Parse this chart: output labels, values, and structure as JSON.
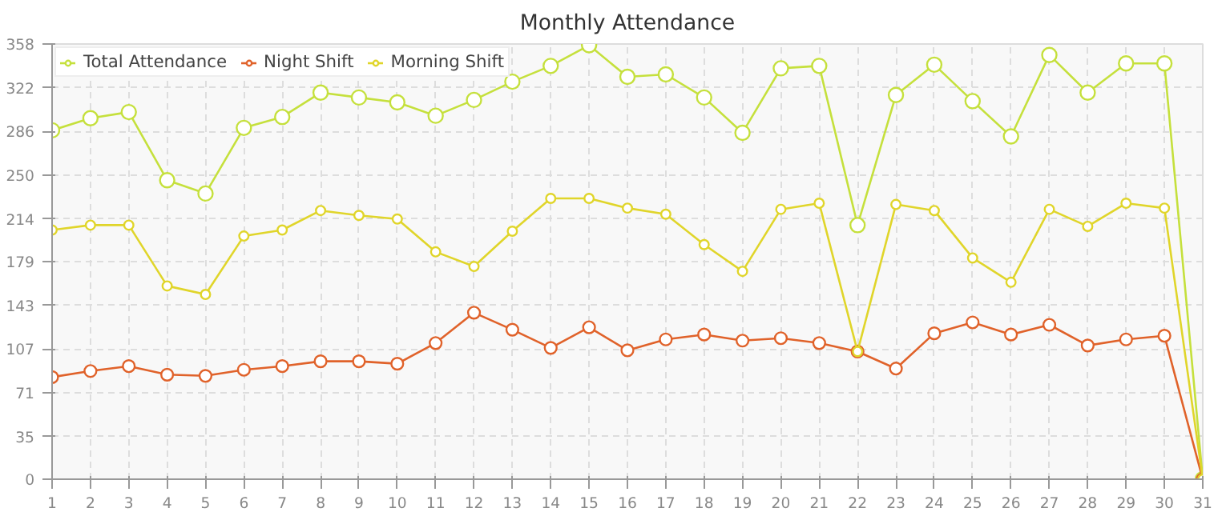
{
  "chart_data": {
    "type": "line",
    "title": "Monthly Attendance",
    "x": [
      1,
      2,
      3,
      4,
      5,
      6,
      7,
      8,
      9,
      10,
      11,
      12,
      13,
      14,
      15,
      16,
      17,
      18,
      19,
      20,
      21,
      22,
      23,
      24,
      25,
      26,
      27,
      28,
      29,
      30,
      31
    ],
    "xlim": [
      1,
      31
    ],
    "xticks": [
      1,
      2,
      3,
      4,
      5,
      6,
      7,
      8,
      9,
      10,
      11,
      12,
      13,
      14,
      15,
      16,
      17,
      18,
      19,
      20,
      21,
      22,
      23,
      24,
      25,
      26,
      27,
      28,
      29,
      30,
      31
    ],
    "ylim": [
      0,
      358
    ],
    "yticks": [
      0,
      35,
      71,
      107,
      143,
      179,
      214,
      250,
      286,
      322,
      358
    ],
    "series": [
      {
        "name": "Total Attendance",
        "color": "#c5e03c",
        "values": [
          287,
          297,
          302,
          246,
          235,
          289,
          298,
          318,
          314,
          310,
          299,
          312,
          327,
          340,
          357,
          331,
          333,
          314,
          285,
          338,
          340,
          209,
          316,
          341,
          311,
          282,
          349,
          318,
          342,
          342,
          0
        ]
      },
      {
        "name": "Night Shift",
        "color": "#e0622a",
        "values": [
          84,
          89,
          93,
          86,
          85,
          90,
          93,
          97,
          97,
          95,
          112,
          137,
          123,
          108,
          125,
          106,
          115,
          119,
          114,
          116,
          112,
          105,
          91,
          120,
          129,
          119,
          127,
          110,
          115,
          118,
          0
        ]
      },
      {
        "name": "Morning Shift",
        "color": "#e0d52a",
        "values": [
          205,
          209,
          209,
          159,
          152,
          200,
          205,
          221,
          217,
          214,
          187,
          175,
          204,
          231,
          231,
          223,
          218,
          193,
          171,
          222,
          227,
          105,
          226,
          221,
          182,
          162,
          222,
          208,
          227,
          223,
          0
        ]
      }
    ],
    "grid": true,
    "legend": "top left",
    "marker": "circle",
    "line_style": "solid"
  }
}
